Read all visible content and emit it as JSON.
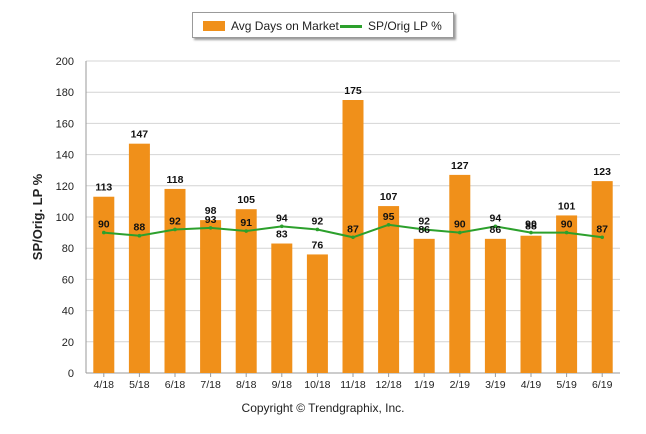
{
  "chart_data": {
    "type": "bar",
    "categories": [
      "4/18",
      "5/18",
      "6/18",
      "7/18",
      "8/18",
      "9/18",
      "10/18",
      "11/18",
      "12/18",
      "1/19",
      "2/19",
      "3/19",
      "4/19",
      "5/19",
      "6/19"
    ],
    "series": [
      {
        "name": "Avg Days on Market",
        "type": "bar",
        "color": "#f0901a",
        "values": [
          113,
          147,
          118,
          98,
          105,
          83,
          76,
          175,
          107,
          86,
          127,
          86,
          88,
          101,
          123
        ]
      },
      {
        "name": "SP/Orig LP %",
        "type": "line",
        "color": "#2ca02c",
        "values": [
          90,
          88,
          92,
          93,
          91,
          94,
          92,
          87,
          95,
          92,
          90,
          94,
          90,
          90,
          87
        ]
      }
    ],
    "bar_value_labels": [
      "113",
      "147",
      "118",
      "98",
      "105",
      "83",
      "76",
      "175",
      "107",
      "86",
      "127",
      "86",
      "88",
      "101",
      "123"
    ],
    "line_value_labels": [
      "90",
      "88",
      "92",
      "93",
      "91",
      "94",
      "92",
      "87",
      "95",
      "92",
      "90",
      "94",
      "90",
      "90",
      "87"
    ],
    "ylabel": "SP/Orig. LP %",
    "ylim": [
      0,
      200
    ],
    "yticks": [
      "0",
      "20",
      "40",
      "60",
      "80",
      "100",
      "120",
      "140",
      "160",
      "180",
      "200"
    ],
    "grid": true,
    "legend_position": "top-center"
  },
  "legend": {
    "bar_label": "Avg Days on Market",
    "line_label": "SP/Orig LP %"
  },
  "footer": {
    "copyright": "Copyright © Trendgraphix, Inc."
  }
}
